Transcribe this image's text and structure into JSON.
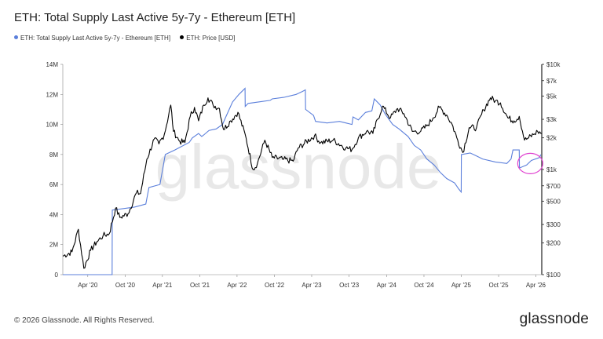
{
  "header": {
    "title": "ETH: Total Supply Last Active 5y-7y - Ethereum [ETH]"
  },
  "legend": [
    {
      "label": "ETH: Total Supply Last Active 5y-7y - Ethereum [ETH]",
      "color": "#5b7fdb"
    },
    {
      "label": "ETH: Price [USD]",
      "color": "#000000"
    }
  ],
  "watermark": "glassnode",
  "footer": {
    "copyright": "© 2026 Glassnode. All Rights Reserved.",
    "logo": "glassnode"
  },
  "chart_data": {
    "type": "line",
    "title": "ETH: Total Supply Last Active 5y-7y - Ethereum [ETH]",
    "x_tick_labels": [
      "Apr '20",
      "Oct '20",
      "Apr '21",
      "Oct '21",
      "Apr '22",
      "Oct '22",
      "Apr '23",
      "Oct '23",
      "Apr '24",
      "Oct '24",
      "Apr '25",
      "Oct '25",
      "Apr '26"
    ],
    "left_axis": {
      "ticks": [
        0,
        2,
        4,
        6,
        8,
        10,
        12,
        14
      ],
      "tick_labels": [
        "0",
        "2M",
        "4M",
        "6M",
        "8M",
        "10M",
        "12M",
        "14M"
      ],
      "range": [
        0,
        14000000
      ]
    },
    "right_axis": {
      "scale": "log",
      "ticks": [
        100,
        200,
        300,
        500,
        700,
        1000,
        2000,
        3000,
        5000,
        7000,
        10000
      ],
      "tick_labels": [
        "$100",
        "$200",
        "$300",
        "$500",
        "$700",
        "$1k",
        "$2k",
        "$3k",
        "$5k",
        "$7k",
        "$10k"
      ],
      "range": [
        100,
        10000
      ]
    },
    "annotation": {
      "type": "circle",
      "color": "#e040d0",
      "date": "2026-03-01"
    },
    "series": [
      {
        "name": "ETH: Total Supply Last Active 5y-7y - Ethereum [ETH]",
        "axis": "left",
        "color": "#5b7fdb",
        "points": [
          [
            "2019-12-01",
            0
          ],
          [
            "2020-07-29",
            0
          ],
          [
            "2020-07-30",
            4300000
          ],
          [
            "2020-11-15",
            4500000
          ],
          [
            "2021-01-10",
            4700000
          ],
          [
            "2021-01-25",
            5800000
          ],
          [
            "2021-03-20",
            6000000
          ],
          [
            "2021-04-15",
            8000000
          ],
          [
            "2021-06-01",
            8300000
          ],
          [
            "2021-08-10",
            8800000
          ],
          [
            "2021-08-25",
            9100000
          ],
          [
            "2021-09-25",
            9400000
          ],
          [
            "2021-10-10",
            9200000
          ],
          [
            "2021-10-20",
            9300000
          ],
          [
            "2021-11-15",
            9600000
          ],
          [
            "2021-12-20",
            9700000
          ],
          [
            "2022-01-20",
            10000000
          ],
          [
            "2022-02-05",
            10500000
          ],
          [
            "2022-03-10",
            11500000
          ],
          [
            "2022-04-10",
            12000000
          ],
          [
            "2022-05-10",
            12400000
          ],
          [
            "2022-05-11",
            11200000
          ],
          [
            "2022-05-25",
            11400000
          ],
          [
            "2022-07-15",
            11500000
          ],
          [
            "2022-09-10",
            11600000
          ],
          [
            "2022-09-20",
            11700000
          ],
          [
            "2022-11-15",
            11800000
          ],
          [
            "2023-01-15",
            12000000
          ],
          [
            "2023-02-15",
            12200000
          ],
          [
            "2023-03-01",
            12300000
          ],
          [
            "2023-03-02",
            11000000
          ],
          [
            "2023-04-10",
            10600000
          ],
          [
            "2023-04-20",
            10200000
          ],
          [
            "2023-06-15",
            10100000
          ],
          [
            "2023-08-15",
            10200000
          ],
          [
            "2023-09-15",
            10100000
          ],
          [
            "2023-10-15",
            10000000
          ],
          [
            "2023-10-20",
            10500000
          ],
          [
            "2023-11-15",
            10300000
          ],
          [
            "2023-12-20",
            10800000
          ],
          [
            "2024-01-20",
            10900000
          ],
          [
            "2024-02-01",
            11700000
          ],
          [
            "2024-03-01",
            11300000
          ],
          [
            "2024-03-25",
            10700000
          ],
          [
            "2024-05-01",
            10000000
          ],
          [
            "2024-06-01",
            9700000
          ],
          [
            "2024-07-15",
            9200000
          ],
          [
            "2024-08-15",
            8600000
          ],
          [
            "2024-09-15",
            8300000
          ],
          [
            "2024-10-15",
            7700000
          ],
          [
            "2024-11-20",
            7300000
          ],
          [
            "2024-12-20",
            6800000
          ],
          [
            "2025-01-20",
            6400000
          ],
          [
            "2025-02-28",
            6100000
          ],
          [
            "2025-03-20",
            5700000
          ],
          [
            "2025-04-01",
            5500000
          ],
          [
            "2025-04-02",
            8000000
          ],
          [
            "2025-05-15",
            8100000
          ],
          [
            "2025-06-15",
            7900000
          ],
          [
            "2025-07-15",
            7700000
          ],
          [
            "2025-09-15",
            7500000
          ],
          [
            "2025-11-10",
            7400000
          ],
          [
            "2025-12-01",
            7700000
          ],
          [
            "2025-12-10",
            8300000
          ],
          [
            "2026-01-10",
            8300000
          ],
          [
            "2026-01-11",
            7100000
          ],
          [
            "2026-02-15",
            7300000
          ],
          [
            "2026-03-10",
            7600000
          ],
          [
            "2026-04-20",
            7800000
          ],
          [
            "2026-04-25",
            8000000
          ]
        ]
      },
      {
        "name": "ETH: Price [USD]",
        "axis": "right",
        "color": "#000000",
        "points": [
          [
            "2019-12-01",
            150
          ],
          [
            "2020-01-15",
            165
          ],
          [
            "2020-02-15",
            270
          ],
          [
            "2020-03-13",
            115
          ],
          [
            "2020-04-15",
            170
          ],
          [
            "2020-05-15",
            205
          ],
          [
            "2020-06-15",
            235
          ],
          [
            "2020-07-15",
            245
          ],
          [
            "2020-08-15",
            430
          ],
          [
            "2020-09-05",
            350
          ],
          [
            "2020-10-15",
            380
          ],
          [
            "2020-11-25",
            600
          ],
          [
            "2020-12-15",
            590
          ],
          [
            "2021-01-15",
            1250
          ],
          [
            "2021-02-20",
            1950
          ],
          [
            "2021-03-15",
            1750
          ],
          [
            "2021-04-10",
            2150
          ],
          [
            "2021-05-12",
            4100
          ],
          [
            "2021-05-25",
            2300
          ],
          [
            "2021-06-25",
            1850
          ],
          [
            "2021-07-20",
            1800
          ],
          [
            "2021-08-15",
            3200
          ],
          [
            "2021-09-05",
            3900
          ],
          [
            "2021-09-25",
            2900
          ],
          [
            "2021-10-20",
            4100
          ],
          [
            "2021-11-10",
            4800
          ],
          [
            "2021-12-05",
            4100
          ],
          [
            "2022-01-05",
            3800
          ],
          [
            "2022-01-25",
            2400
          ],
          [
            "2022-03-01",
            2900
          ],
          [
            "2022-04-05",
            3500
          ],
          [
            "2022-05-15",
            2000
          ],
          [
            "2022-06-18",
            1000
          ],
          [
            "2022-07-10",
            1150
          ],
          [
            "2022-08-15",
            1900
          ],
          [
            "2022-09-20",
            1300
          ],
          [
            "2022-11-10",
            1250
          ],
          [
            "2022-12-31",
            1200
          ],
          [
            "2023-01-25",
            1600
          ],
          [
            "2023-04-15",
            2100
          ],
          [
            "2023-05-15",
            1800
          ],
          [
            "2023-07-15",
            1900
          ],
          [
            "2023-09-15",
            1600
          ],
          [
            "2023-10-15",
            1550
          ],
          [
            "2023-11-15",
            2000
          ],
          [
            "2023-12-25",
            2300
          ],
          [
            "2024-01-25",
            2200
          ],
          [
            "2024-03-12",
            4000
          ],
          [
            "2024-04-20",
            3100
          ],
          [
            "2024-05-25",
            3800
          ],
          [
            "2024-06-25",
            3400
          ],
          [
            "2024-08-05",
            2300
          ],
          [
            "2024-09-15",
            2300
          ],
          [
            "2024-10-15",
            2600
          ],
          [
            "2024-11-15",
            3100
          ],
          [
            "2024-12-15",
            3900
          ],
          [
            "2025-01-20",
            3300
          ],
          [
            "2025-02-15",
            2700
          ],
          [
            "2025-03-15",
            1900
          ],
          [
            "2025-04-09",
            1450
          ],
          [
            "2025-05-10",
            2500
          ],
          [
            "2025-06-15",
            2500
          ],
          [
            "2025-07-20",
            3700
          ],
          [
            "2025-08-22",
            4800
          ],
          [
            "2025-09-15",
            4500
          ],
          [
            "2025-10-10",
            4300
          ],
          [
            "2025-11-15",
            3100
          ],
          [
            "2025-12-15",
            2900
          ],
          [
            "2026-01-10",
            3200
          ],
          [
            "2026-02-05",
            1900
          ],
          [
            "2026-02-25",
            2000
          ],
          [
            "2026-03-20",
            2150
          ],
          [
            "2026-04-10",
            2300
          ],
          [
            "2026-04-30",
            2200
          ]
        ]
      }
    ],
    "grid": false
  }
}
